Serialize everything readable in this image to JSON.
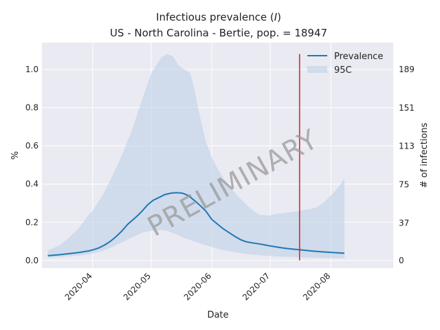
{
  "chart_data": {
    "type": "line",
    "title_line1": "Infectious prevalence (",
    "title_var": "I",
    "title_line1_end": ")",
    "title_line2": "US - North Carolina - Bertie, pop. = 18947",
    "xlabel": "Date",
    "ylabel": "%",
    "ylabel_right": "# of infections",
    "x_ticks": [
      "2020-04",
      "2020-05",
      "2020-06",
      "2020-07",
      "2020-08"
    ],
    "y_ticks": [
      "0.0",
      "0.2",
      "0.4",
      "0.6",
      "0.8",
      "1.0"
    ],
    "y_ticks_right": [
      "0",
      "37",
      "75",
      "113",
      "151",
      "189"
    ],
    "ylim": [
      -0.04,
      1.14
    ],
    "xlim_days": [
      -26,
      154
    ],
    "grid": true,
    "legend_position": "top-right",
    "legend": [
      "Prevalence",
      "95C"
    ],
    "watermark": "PRELIMINARY",
    "vline_day": 106,
    "colors": {
      "line": "#1f77b4",
      "band": "#b9cde5",
      "vline": "#d62728",
      "background": "#eaeaf2",
      "grid": "#ffffff"
    },
    "series": [
      {
        "name": "Prevalence",
        "x": [
          -23,
          -17,
          -12,
          -7,
          -2,
          0,
          3,
          6,
          9,
          12,
          15,
          18,
          22,
          25,
          28,
          31,
          34,
          37,
          40,
          43,
          46,
          49,
          52,
          55,
          58,
          61,
          64,
          67,
          70,
          73,
          76,
          79,
          82,
          85,
          88,
          91,
          94,
          97,
          100,
          103,
          106,
          109,
          112,
          115,
          118,
          121,
          124,
          127,
          129
        ],
        "y": [
          0.025,
          0.03,
          0.036,
          0.042,
          0.05,
          0.055,
          0.065,
          0.08,
          0.1,
          0.125,
          0.155,
          0.19,
          0.225,
          0.255,
          0.29,
          0.315,
          0.33,
          0.345,
          0.352,
          0.355,
          0.352,
          0.34,
          0.315,
          0.288,
          0.258,
          0.215,
          0.19,
          0.165,
          0.145,
          0.125,
          0.108,
          0.097,
          0.092,
          0.087,
          0.082,
          0.076,
          0.071,
          0.066,
          0.062,
          0.059,
          0.056,
          0.053,
          0.05,
          0.047,
          0.045,
          0.043,
          0.041,
          0.039,
          0.038
        ]
      }
    ],
    "band": {
      "name": "95C",
      "x": [
        -23,
        -17,
        -12,
        -7,
        -2,
        0,
        5,
        10,
        15,
        20,
        25,
        30,
        35,
        38,
        41,
        44,
        47,
        50,
        52,
        55,
        58,
        61,
        64,
        67,
        70,
        75,
        80,
        85,
        90,
        95,
        100,
        103,
        106,
        109,
        112,
        115,
        118,
        121,
        124,
        127,
        129
      ],
      "upper": [
        0.05,
        0.08,
        0.12,
        0.17,
        0.24,
        0.26,
        0.34,
        0.44,
        0.55,
        0.68,
        0.83,
        0.98,
        1.06,
        1.08,
        1.07,
        1.02,
        1.0,
        0.98,
        0.9,
        0.75,
        0.62,
        0.54,
        0.48,
        0.43,
        0.39,
        0.33,
        0.28,
        0.24,
        0.235,
        0.245,
        0.25,
        0.255,
        0.26,
        0.265,
        0.27,
        0.28,
        0.3,
        0.33,
        0.36,
        0.4,
        0.43
      ],
      "lower": [
        0.015,
        0.018,
        0.022,
        0.026,
        0.032,
        0.036,
        0.05,
        0.07,
        0.095,
        0.12,
        0.145,
        0.155,
        0.16,
        0.155,
        0.145,
        0.132,
        0.118,
        0.108,
        0.1,
        0.09,
        0.08,
        0.07,
        0.062,
        0.055,
        0.048,
        0.04,
        0.033,
        0.028,
        0.024,
        0.021,
        0.019,
        0.018,
        0.017,
        0.016,
        0.015,
        0.014,
        0.013,
        0.012,
        0.012,
        0.011,
        0.011
      ]
    }
  }
}
